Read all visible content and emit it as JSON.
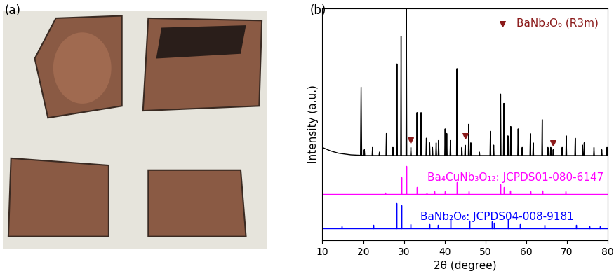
{
  "photo": {
    "label": "(a)"
  },
  "chart_data": {
    "type": "line",
    "title": "(b)",
    "x_label": "2θ (degree)",
    "y_label": "Intensity (a.u.)",
    "xlim": [
      10,
      80
    ],
    "xticks": [
      10,
      20,
      30,
      40,
      50,
      60,
      70,
      80
    ],
    "ylim": [
      0,
      1
    ],
    "yticks": [],
    "tick_labels": "x",
    "legend": "upper right",
    "series": [
      {
        "name": null,
        "type": "line",
        "color": "#000000",
        "x": [
          10,
          12,
          14,
          17,
          19.35,
          19.5,
          19.65,
          20.2,
          20.3,
          20.4,
          22.2,
          22.3,
          22.4,
          23.9,
          24.0,
          24.1,
          25.6,
          25.7,
          25.8,
          27.2,
          27.3,
          27.4,
          28.2,
          28.3,
          28.4,
          29.2,
          29.3,
          29.4,
          30.5,
          30.6,
          30.7,
          31.6,
          31.7,
          31.8,
          33.1,
          33.2,
          33.3,
          34.1,
          34.2,
          34.3,
          35.4,
          35.5,
          35.6,
          36.2,
          36.3,
          36.4,
          36.9,
          37.0,
          37.1,
          37.8,
          37.9,
          38.0,
          38.4,
          38.5,
          38.6,
          40.0,
          40.1,
          40.2,
          40.4,
          40.5,
          40.6,
          41.3,
          41.4,
          41.5,
          42.9,
          43.0,
          43.1,
          44.1,
          44.2,
          44.3,
          44.9,
          45.0,
          45.1,
          45.8,
          45.9,
          46.0,
          46.3,
          46.4,
          46.5,
          48.4,
          48.5,
          48.6,
          51.1,
          51.2,
          51.3,
          51.9,
          52.0,
          52.1,
          53.6,
          53.7,
          53.8,
          54.4,
          54.5,
          54.6,
          55.4,
          55.5,
          55.6,
          56.1,
          56.2,
          56.3,
          57.9,
          58.0,
          58.1,
          58.9,
          59.0,
          59.1,
          60.9,
          61.0,
          61.1,
          61.6,
          61.7,
          61.8,
          63.8,
          63.9,
          64.0,
          65.2,
          65.3,
          65.4,
          65.9,
          66.0,
          66.1,
          66.5,
          66.6,
          66.7,
          68.7,
          68.8,
          68.9,
          69.7,
          69.8,
          69.9,
          71.9,
          72.0,
          72.1,
          73.7,
          73.8,
          73.9,
          74.1,
          74.2,
          74.3,
          76.5,
          76.6,
          76.7,
          78.4,
          78.5,
          78.6,
          79.7,
          79.8,
          79.9,
          80
        ],
        "values": [
          0.4,
          0.385,
          0.375,
          0.368,
          0.366,
          0.66,
          0.366,
          0.365,
          0.39,
          0.365,
          0.365,
          0.4,
          0.365,
          0.365,
          0.38,
          0.365,
          0.365,
          0.46,
          0.365,
          0.365,
          0.4,
          0.365,
          0.365,
          0.76,
          0.365,
          0.365,
          0.88,
          0.365,
          0.365,
          1.0,
          0.365,
          0.365,
          0.4,
          0.365,
          0.365,
          0.55,
          0.365,
          0.365,
          0.55,
          0.365,
          0.365,
          0.44,
          0.365,
          0.365,
          0.42,
          0.365,
          0.365,
          0.4,
          0.365,
          0.365,
          0.42,
          0.365,
          0.365,
          0.43,
          0.365,
          0.365,
          0.48,
          0.365,
          0.365,
          0.46,
          0.365,
          0.365,
          0.43,
          0.365,
          0.365,
          0.74,
          0.365,
          0.365,
          0.4,
          0.365,
          0.365,
          0.41,
          0.365,
          0.365,
          0.5,
          0.365,
          0.365,
          0.42,
          0.365,
          0.365,
          0.38,
          0.365,
          0.365,
          0.47,
          0.365,
          0.365,
          0.41,
          0.365,
          0.365,
          0.63,
          0.365,
          0.365,
          0.59,
          0.365,
          0.365,
          0.45,
          0.365,
          0.365,
          0.49,
          0.365,
          0.365,
          0.48,
          0.365,
          0.365,
          0.4,
          0.365,
          0.365,
          0.46,
          0.365,
          0.365,
          0.42,
          0.365,
          0.365,
          0.52,
          0.365,
          0.365,
          0.4,
          0.365,
          0.365,
          0.4,
          0.365,
          0.365,
          0.39,
          0.365,
          0.365,
          0.4,
          0.365,
          0.365,
          0.45,
          0.365,
          0.365,
          0.44,
          0.365,
          0.365,
          0.41,
          0.365,
          0.365,
          0.42,
          0.365,
          0.365,
          0.4,
          0.365,
          0.365,
          0.39,
          0.365,
          0.365,
          0.4,
          0.365,
          0.365
        ]
      },
      {
        "name": "BaNb₃O₆ (R3m)",
        "type": "scatter",
        "marker": "v",
        "color": "#8b1a1a",
        "x": [
          31.6,
          45.0,
          66.6
        ],
        "values": [
          0.43,
          0.45,
          0.42
        ]
      },
      {
        "name": null,
        "type": "line",
        "color": "#ff00ff",
        "x": [
          10,
          25.5,
          25.5,
          25.5,
          29.3,
          29.3,
          29.3,
          30.5,
          30.5,
          30.5,
          33.2,
          33.2,
          33.2,
          35.5,
          35.5,
          35.5,
          37.5,
          37.5,
          37.5,
          40.0,
          40.0,
          40.0,
          42.9,
          42.9,
          42.9,
          45.9,
          45.9,
          45.9,
          53.7,
          53.7,
          53.7,
          54.5,
          54.5,
          54.5,
          56.0,
          56.0,
          56.0,
          61.0,
          61.0,
          61.0,
          64.0,
          64.0,
          64.0,
          69.7,
          69.7,
          69.7,
          80
        ],
        "values": [
          0.2,
          0.2,
          0.205,
          0.2,
          0.2,
          0.27,
          0.2,
          0.2,
          0.32,
          0.2,
          0.2,
          0.23,
          0.2,
          0.2,
          0.205,
          0.2,
          0.2,
          0.21,
          0.2,
          0.2,
          0.21,
          0.2,
          0.2,
          0.25,
          0.2,
          0.2,
          0.21,
          0.2,
          0.2,
          0.24,
          0.2,
          0.2,
          0.23,
          0.2,
          0.2,
          0.215,
          0.2,
          0.2,
          0.21,
          0.2,
          0.2,
          0.215,
          0.2,
          0.2,
          0.21,
          0.2,
          0.2
        ]
      },
      {
        "name": null,
        "type": "line",
        "color": "#0000ff",
        "x": [
          10,
          14.8,
          14.8,
          14.8,
          22.5,
          22.5,
          22.5,
          28.2,
          28.2,
          28.2,
          29.4,
          29.4,
          29.4,
          31.6,
          31.6,
          31.6,
          36.2,
          36.2,
          36.2,
          38.4,
          38.4,
          38.4,
          41.5,
          41.5,
          41.5,
          46.0,
          46.0,
          46.0,
          51.5,
          51.5,
          51.5,
          52.0,
          52.0,
          52.0,
          55.5,
          55.5,
          55.5,
          58.5,
          58.5,
          58.5,
          64.5,
          64.5,
          64.5,
          72.3,
          72.3,
          72.3,
          75.5,
          75.5,
          75.5,
          78.0,
          78.0,
          78.0,
          80
        ],
        "values": [
          0.05,
          0.05,
          0.06,
          0.05,
          0.05,
          0.065,
          0.05,
          0.05,
          0.16,
          0.05,
          0.05,
          0.15,
          0.05,
          0.05,
          0.07,
          0.05,
          0.05,
          0.07,
          0.05,
          0.05,
          0.065,
          0.05,
          0.05,
          0.09,
          0.05,
          0.05,
          0.085,
          0.05,
          0.05,
          0.08,
          0.05,
          0.05,
          0.075,
          0.05,
          0.05,
          0.09,
          0.05,
          0.05,
          0.07,
          0.05,
          0.05,
          0.065,
          0.05,
          0.05,
          0.065,
          0.05,
          0.05,
          0.06,
          0.05,
          0.05,
          0.06,
          0.05,
          0.05
        ]
      }
    ],
    "annotations": [
      {
        "text": "Ba₄CuNb₃O₁₂: JCPDS01-080-6147",
        "color": "#ff00ff"
      },
      {
        "text": "BaNb₂O₆: JCPDS04-008-9181",
        "color": "#0000ff"
      }
    ]
  }
}
